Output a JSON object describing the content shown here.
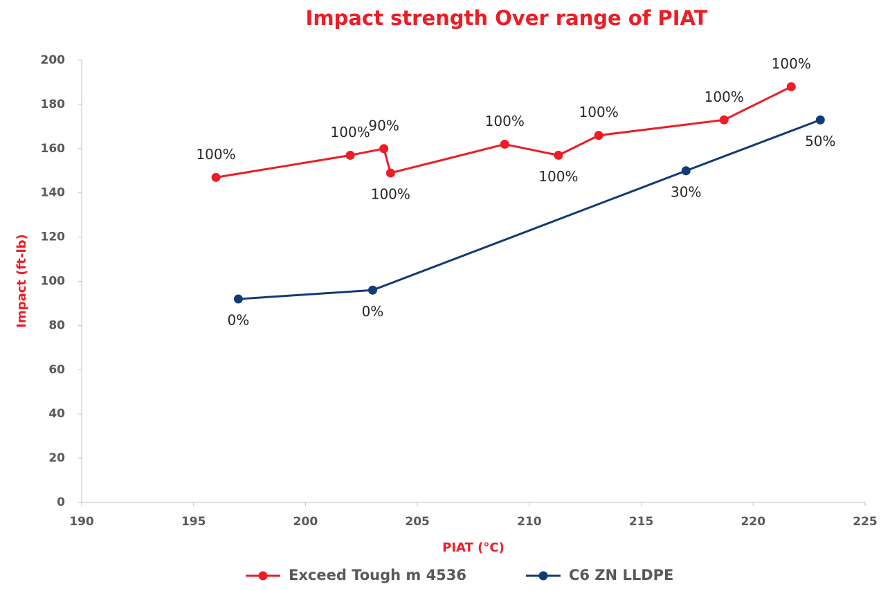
{
  "chart_data": {
    "type": "line",
    "title": "Impact strength Over range of PIAT",
    "x_label": "PIAT (°C)",
    "y_label": "Impact (ft-lb)",
    "xlim": [
      190,
      225
    ],
    "xticks": [
      190,
      195,
      200,
      205,
      210,
      215,
      220,
      225
    ],
    "ylim": [
      0,
      200
    ],
    "yticks": [
      0,
      20,
      40,
      60,
      80,
      100,
      120,
      140,
      160,
      180,
      200
    ],
    "grid": false,
    "legend": "bottom",
    "series": [
      {
        "name": "Exceed Tough m 4536",
        "color": "#ee1c25",
        "x": [
          196,
          202,
          203.5,
          203.8,
          208.9,
          211.3,
          213.1,
          218.7,
          221.7
        ],
        "values": [
          147,
          157,
          160,
          149,
          162,
          157,
          166,
          173,
          188
        ],
        "point_labels": [
          "100%",
          "100%",
          "90%",
          "100%",
          "100%",
          "100%",
          "100%",
          "100%",
          "100%"
        ]
      },
      {
        "name": "C6 ZN LLDPE",
        "color": "#123a77",
        "x": [
          197,
          203,
          217,
          223
        ],
        "values": [
          92,
          96,
          150,
          173
        ],
        "point_labels": [
          "0%",
          "0%",
          "30%",
          "50%"
        ]
      }
    ]
  }
}
